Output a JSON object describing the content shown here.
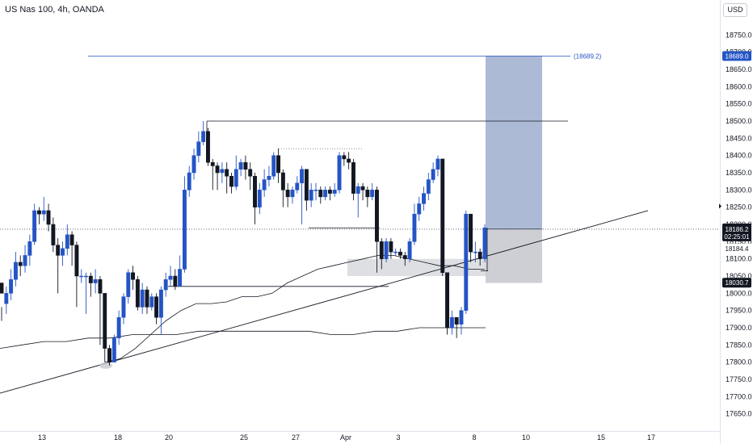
{
  "header": {
    "symbol_title": "US Nas 100, 4h, OANDA",
    "currency": "USD"
  },
  "colors": {
    "bull": "#2454c5",
    "bear": "#131722",
    "target_zone": "#a9b6d4",
    "support_zone": "#c8cacf",
    "target_line": "#2454c5",
    "current_price": "#131722",
    "badge_blue": "#2454c5"
  },
  "chart_data": {
    "type": "candlestick",
    "ylim": [
      17600,
      18800
    ],
    "y_ticks": [
      17650,
      17700,
      17750,
      17800,
      17850,
      17900,
      17950,
      18000,
      18050,
      18100,
      18150,
      18200,
      18250,
      18300,
      18350,
      18400,
      18450,
      18500,
      18550,
      18600,
      18650,
      18700,
      18750
    ],
    "x_ticks": [
      "13",
      "18",
      "20",
      "25",
      "27",
      "Apr",
      "3",
      "8",
      "10",
      "15",
      "17"
    ],
    "candles": [
      [
        18030,
        18000,
        17960,
        17920
      ],
      [
        17970,
        18000,
        18020,
        17940
      ],
      [
        18000,
        18040,
        18070,
        17980
      ],
      [
        18040,
        18090,
        18120,
        18020
      ],
      [
        18090,
        18080,
        18110,
        18050
      ],
      [
        18080,
        18110,
        18140,
        18060
      ],
      [
        18110,
        18150,
        18170,
        18080
      ],
      [
        18150,
        18240,
        18260,
        18140
      ],
      [
        18240,
        18230,
        18250,
        18200
      ],
      [
        18230,
        18240,
        18280,
        18210
      ],
      [
        18240,
        18200,
        18260,
        18180
      ],
      [
        18200,
        18140,
        18220,
        18120
      ],
      [
        18140,
        18110,
        18160,
        18000
      ],
      [
        18110,
        18130,
        18150,
        18080
      ],
      [
        18130,
        18170,
        18200,
        18110
      ],
      [
        18170,
        18140,
        18180,
        18080
      ],
      [
        18140,
        18050,
        18150,
        17960
      ],
      [
        18050,
        18050,
        18070,
        18030
      ],
      [
        18050,
        18050,
        18060,
        17940
      ],
      [
        18050,
        18030,
        18060,
        17990
      ],
      [
        18030,
        18040,
        18070,
        18000
      ],
      [
        18040,
        18000,
        18050,
        17850
      ],
      [
        18000,
        17840,
        18000,
        17800
      ],
      [
        17840,
        17800,
        17850,
        17790
      ],
      [
        17800,
        17870,
        17880,
        17800
      ],
      [
        17870,
        17930,
        17950,
        17850
      ],
      [
        17930,
        17990,
        18000,
        17910
      ],
      [
        17990,
        18060,
        18070,
        17970
      ],
      [
        18060,
        18040,
        18080,
        18010
      ],
      [
        18040,
        17960,
        18050,
        17950
      ],
      [
        17960,
        18010,
        18030,
        17940
      ],
      [
        18010,
        17960,
        18020,
        17940
      ],
      [
        17960,
        17990,
        18000,
        17950
      ],
      [
        17990,
        17930,
        18000,
        17910
      ],
      [
        17930,
        18010,
        18020,
        17880
      ],
      [
        18010,
        18040,
        18060,
        17990
      ],
      [
        18040,
        18050,
        18080,
        18020
      ],
      [
        18050,
        18020,
        18070,
        18010
      ],
      [
        18020,
        18070,
        18110,
        18020
      ],
      [
        18070,
        18300,
        18340,
        18060
      ],
      [
        18300,
        18350,
        18370,
        18280
      ],
      [
        18350,
        18400,
        18420,
        18330
      ],
      [
        18400,
        18440,
        18470,
        18380
      ],
      [
        18440,
        18470,
        18500,
        18430
      ],
      [
        18470,
        18380,
        18480,
        18370
      ],
      [
        18380,
        18370,
        18390,
        18300
      ],
      [
        18370,
        18350,
        18380,
        18300
      ],
      [
        18350,
        18360,
        18380,
        18320
      ],
      [
        18360,
        18340,
        18380,
        18290
      ],
      [
        18340,
        18310,
        18350,
        18290
      ],
      [
        18310,
        18360,
        18400,
        18300
      ],
      [
        18360,
        18380,
        18390,
        18340
      ],
      [
        18380,
        18360,
        18400,
        18330
      ],
      [
        18360,
        18340,
        18380,
        18300
      ],
      [
        18340,
        18250,
        18350,
        18200
      ],
      [
        18250,
        18300,
        18320,
        18230
      ],
      [
        18300,
        18330,
        18360,
        18280
      ],
      [
        18330,
        18340,
        18370,
        18310
      ],
      [
        18340,
        18400,
        18410,
        18330
      ],
      [
        18400,
        18350,
        18420,
        18320
      ],
      [
        18350,
        18300,
        18360,
        18250
      ],
      [
        18300,
        18280,
        18320,
        18250
      ],
      [
        18280,
        18300,
        18310,
        18260
      ],
      [
        18300,
        18320,
        18340,
        18290
      ],
      [
        18320,
        18360,
        18370,
        18200
      ],
      [
        18360,
        18270,
        18360,
        18240
      ],
      [
        18270,
        18300,
        18320,
        18250
      ],
      [
        18300,
        18300,
        18320,
        18270
      ],
      [
        18300,
        18280,
        18310,
        18260
      ],
      [
        18280,
        18300,
        18310,
        18270
      ],
      [
        18300,
        18290,
        18310,
        18270
      ],
      [
        18290,
        18300,
        18320,
        18280
      ],
      [
        18300,
        18400,
        18410,
        18290
      ],
      [
        18400,
        18390,
        18410,
        18370
      ],
      [
        18390,
        18380,
        18410,
        18360
      ],
      [
        18380,
        18290,
        18390,
        18270
      ],
      [
        18290,
        18310,
        18320,
        18220
      ],
      [
        18310,
        18300,
        18320,
        18270
      ],
      [
        18300,
        18280,
        18310,
        18250
      ],
      [
        18280,
        18300,
        18320,
        18270
      ],
      [
        18300,
        18150,
        18310,
        18060
      ],
      [
        18150,
        18100,
        18160,
        18070
      ],
      [
        18100,
        18150,
        18160,
        18090
      ],
      [
        18150,
        18120,
        18160,
        18100
      ],
      [
        18120,
        18120,
        18130,
        18110
      ],
      [
        18120,
        18110,
        18130,
        18100
      ],
      [
        18110,
        18100,
        18120,
        18080
      ],
      [
        18100,
        18150,
        18160,
        18090
      ],
      [
        18150,
        18230,
        18260,
        18140
      ],
      [
        18230,
        18260,
        18280,
        18210
      ],
      [
        18260,
        18290,
        18310,
        18240
      ],
      [
        18290,
        18330,
        18350,
        18270
      ],
      [
        18330,
        18360,
        18380,
        18320
      ],
      [
        18360,
        18390,
        18400,
        18340
      ],
      [
        18390,
        18060,
        18390,
        18050
      ],
      [
        18060,
        17900,
        18060,
        17880
      ],
      [
        17900,
        17930,
        17950,
        17880
      ],
      [
        17930,
        17910,
        17930,
        17870
      ],
      [
        17910,
        17950,
        17960,
        17880
      ],
      [
        17950,
        18230,
        18240,
        17940
      ],
      [
        18230,
        18120,
        18230,
        18090
      ],
      [
        18120,
        18120,
        18150,
        18090
      ],
      [
        18120,
        18100,
        18130,
        18080
      ],
      [
        18100,
        18190,
        18200,
        18090
      ]
    ],
    "trendline": {
      "start": [
        "2024-03-13",
        17690
      ],
      "end": [
        "2024-04-16",
        18240
      ]
    },
    "ma_series_1": [
      17850,
      17860,
      17870,
      17880,
      17890,
      17900,
      17920,
      17940,
      17960,
      17980,
      18000,
      18020,
      18040,
      18060,
      18070,
      18090,
      18100,
      18110,
      18120,
      18120,
      18130,
      18130,
      18130,
      18120,
      18110,
      18100
    ],
    "ma_series_2": [
      17840,
      17850,
      17860,
      17860,
      17870,
      17870,
      17880,
      17880,
      17880,
      17890,
      17890,
      17890,
      17890,
      17890,
      17890,
      17880,
      17880,
      17890,
      17890,
      17900,
      17900,
      17900,
      17900
    ],
    "target_zone": [
      18186,
      18689
    ],
    "support_zone": [
      18030,
      18184
    ],
    "resistance_line": 18500,
    "levels": {
      "target_label": "(18689.2)",
      "target_badge": "18689.0",
      "current_price": "18186.2",
      "countdown": "02:25:01",
      "level_1": "18184.4",
      "level_2": "18030.7"
    }
  }
}
